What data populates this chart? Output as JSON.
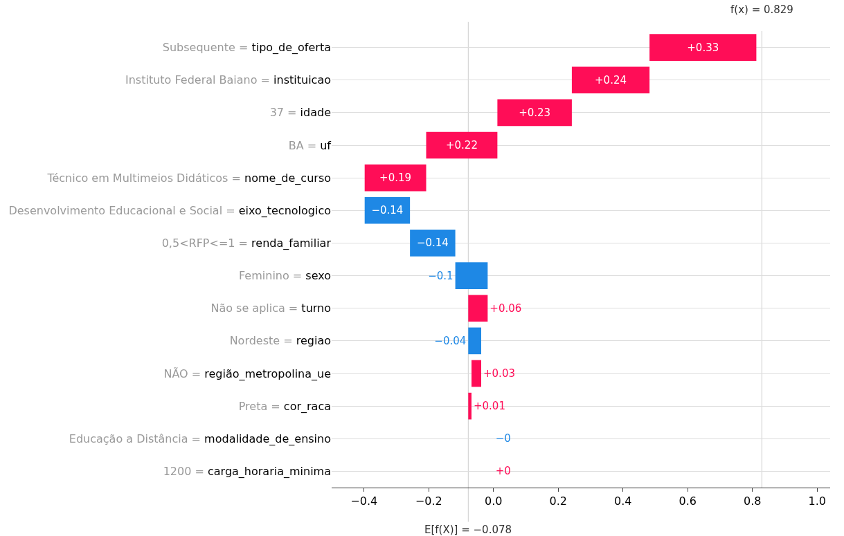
{
  "chart_data": {
    "type": "bar",
    "orientation": "horizontal",
    "categories": [
      "Subsequente = tipo_de_oferta",
      "Instituto Federal Baiano = instituicao",
      "37 = idade",
      "BA = uf",
      "Técnico em Multimeios Didáticos = nome_de_curso",
      "Desenvolvimento Educacional e Social = eixo_tecnologico",
      "0,5<RFP<=1 = renda_familiar",
      "Feminino = sexo",
      "Não se aplica = turno",
      "Nordeste = regiao",
      "NÃO = região_metropolina_ue",
      "Preta = cor_raca",
      "Educação a Distância = modalidade_de_ensino",
      "1200 = carga_horaria_minima"
    ],
    "values": [
      0.33,
      0.24,
      0.23,
      0.22,
      0.19,
      -0.14,
      -0.14,
      -0.1,
      0.06,
      -0.04,
      0.03,
      0.01,
      0,
      0
    ],
    "base": [
      0.482,
      0.242,
      0.012,
      -0.208,
      -0.398,
      -0.258,
      -0.118,
      -0.018,
      -0.078,
      -0.038,
      -0.068,
      -0.078,
      null,
      null
    ],
    "value_labels": [
      "+0.33",
      "+0.24",
      "+0.23",
      "+0.22",
      "+0.19",
      "−0.14",
      "−0.14",
      "−0.1",
      "+0.06",
      "−0.04",
      "+0.03",
      "+0.01",
      "−0",
      "+0"
    ],
    "colors": [
      "#ff0d57",
      "#ff0d57",
      "#ff0d57",
      "#ff0d57",
      "#ff0d57",
      "#1e88e5",
      "#1e88e5",
      "#1e88e5",
      "#ff0d57",
      "#1e88e5",
      "#ff0d57",
      "#ff0d57",
      "#1e88e5",
      "#ff0d57"
    ],
    "xlim": [
      -0.5,
      1.04
    ],
    "xticks": [
      {
        "value": -0.4,
        "label": "−0.4"
      },
      {
        "value": -0.2,
        "label": "−0.2"
      },
      {
        "value": 0,
        "label": "0.0"
      },
      {
        "value": 0.2,
        "label": "0.2"
      },
      {
        "value": 0.4,
        "label": "0.4"
      },
      {
        "value": 0.6,
        "label": "0.6"
      },
      {
        "value": 0.8,
        "label": "0.8"
      },
      {
        "value": 1.0,
        "label": "1.0"
      }
    ],
    "ref_lines": [
      {
        "axis": "x",
        "value": -0.078,
        "label": "E[f(X)] = −0.078",
        "color": "#cccccc"
      },
      {
        "axis": "x",
        "value": 0.829,
        "label": "f(x) = 0.829",
        "color": "#cccccc"
      }
    ],
    "grid": "y",
    "legend": false
  }
}
